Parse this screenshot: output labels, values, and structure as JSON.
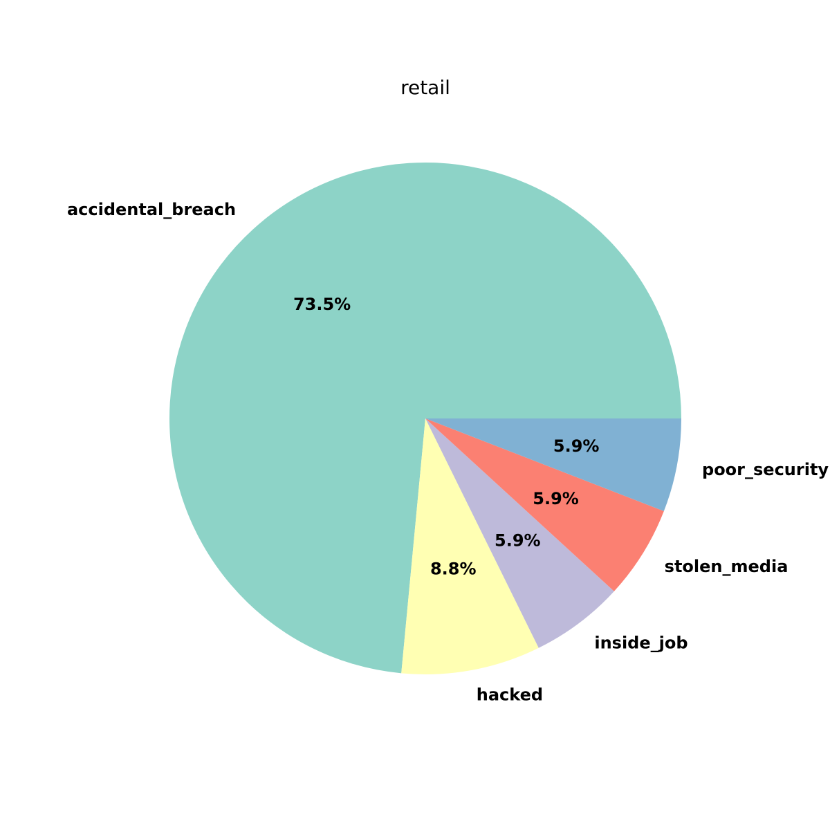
{
  "chart_data": {
    "type": "pie",
    "title": "retail",
    "categories": [
      "accidental_breach",
      "hacked",
      "inside_job",
      "stolen_media",
      "poor_security"
    ],
    "values": [
      73.5,
      8.8,
      5.9,
      5.9,
      5.9
    ],
    "percent_labels": [
      "73.5%",
      "8.8%",
      "5.9%",
      "5.9%",
      "5.9%"
    ],
    "colors": [
      "#8dd3c7",
      "#ffffb3",
      "#bebada",
      "#fb8072",
      "#80b1d3"
    ]
  }
}
